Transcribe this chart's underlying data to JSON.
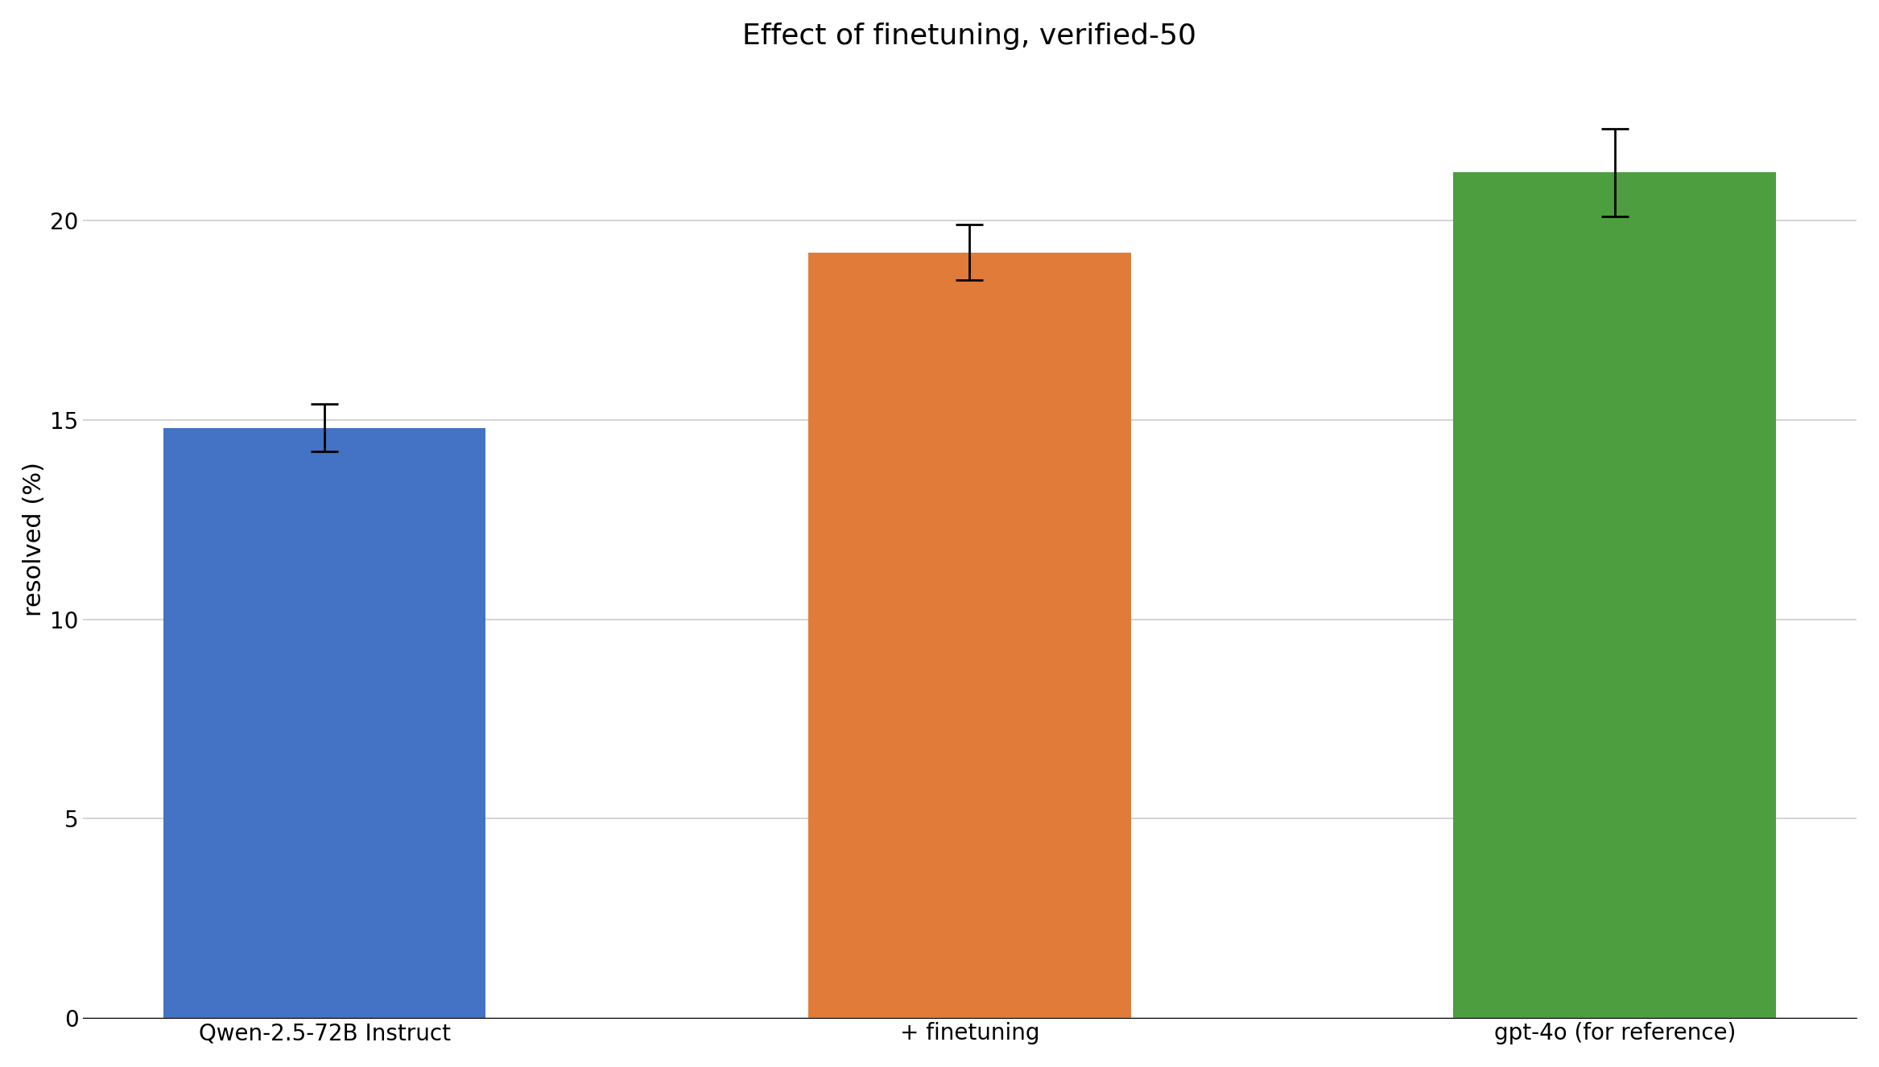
{
  "title": "Effect of finetuning, verified-50",
  "categories": [
    "Qwen-2.5-72B Instruct",
    "+ finetuning",
    "gpt-4o (for reference)"
  ],
  "values": [
    14.8,
    19.2,
    21.2
  ],
  "errors": [
    0.6,
    0.7,
    1.1
  ],
  "bar_colors": [
    "#4472c4",
    "#e07b39",
    "#4c9e3e"
  ],
  "ylabel": "resolved (%)",
  "ylim": [
    0,
    24
  ],
  "yticks": [
    0,
    5,
    10,
    15,
    20
  ],
  "background_color": "#ffffff",
  "title_fontsize": 26,
  "label_fontsize": 22,
  "tick_fontsize": 20,
  "bar_width": 0.5,
  "grid_color": "#cccccc",
  "grid_linewidth": 1.2,
  "error_capsize": 12,
  "error_linewidth": 2.0,
  "error_color": "black"
}
